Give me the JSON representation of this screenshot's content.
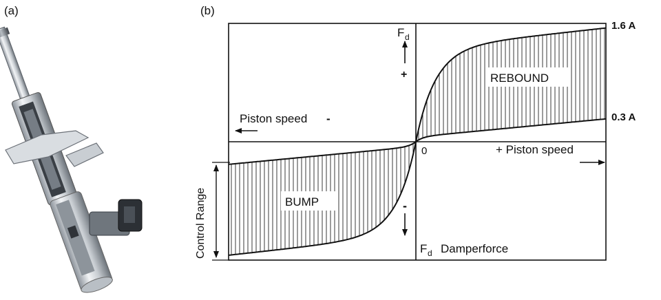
{
  "panels": {
    "a": "(a)",
    "b": "(b)"
  },
  "photo": {
    "icon": "shock-absorber-cutaway-icon"
  },
  "diagram": {
    "fd_top": "F",
    "fd_top_sub": "d",
    "fd_top_sign": "+",
    "fd_bottom_sign": "-",
    "fd_bottom": "F",
    "fd_bottom_sub": "d",
    "damperforce": "Damperforce",
    "piston_left": "Piston speed",
    "piston_left_sign": "-",
    "piston_right": "+ Piston speed",
    "origin": "0",
    "rebound": "REBOUND",
    "bump": "BUMP",
    "control_range": "Control Range",
    "current_high": "1.6 A",
    "current_low": "0.3 A"
  }
}
